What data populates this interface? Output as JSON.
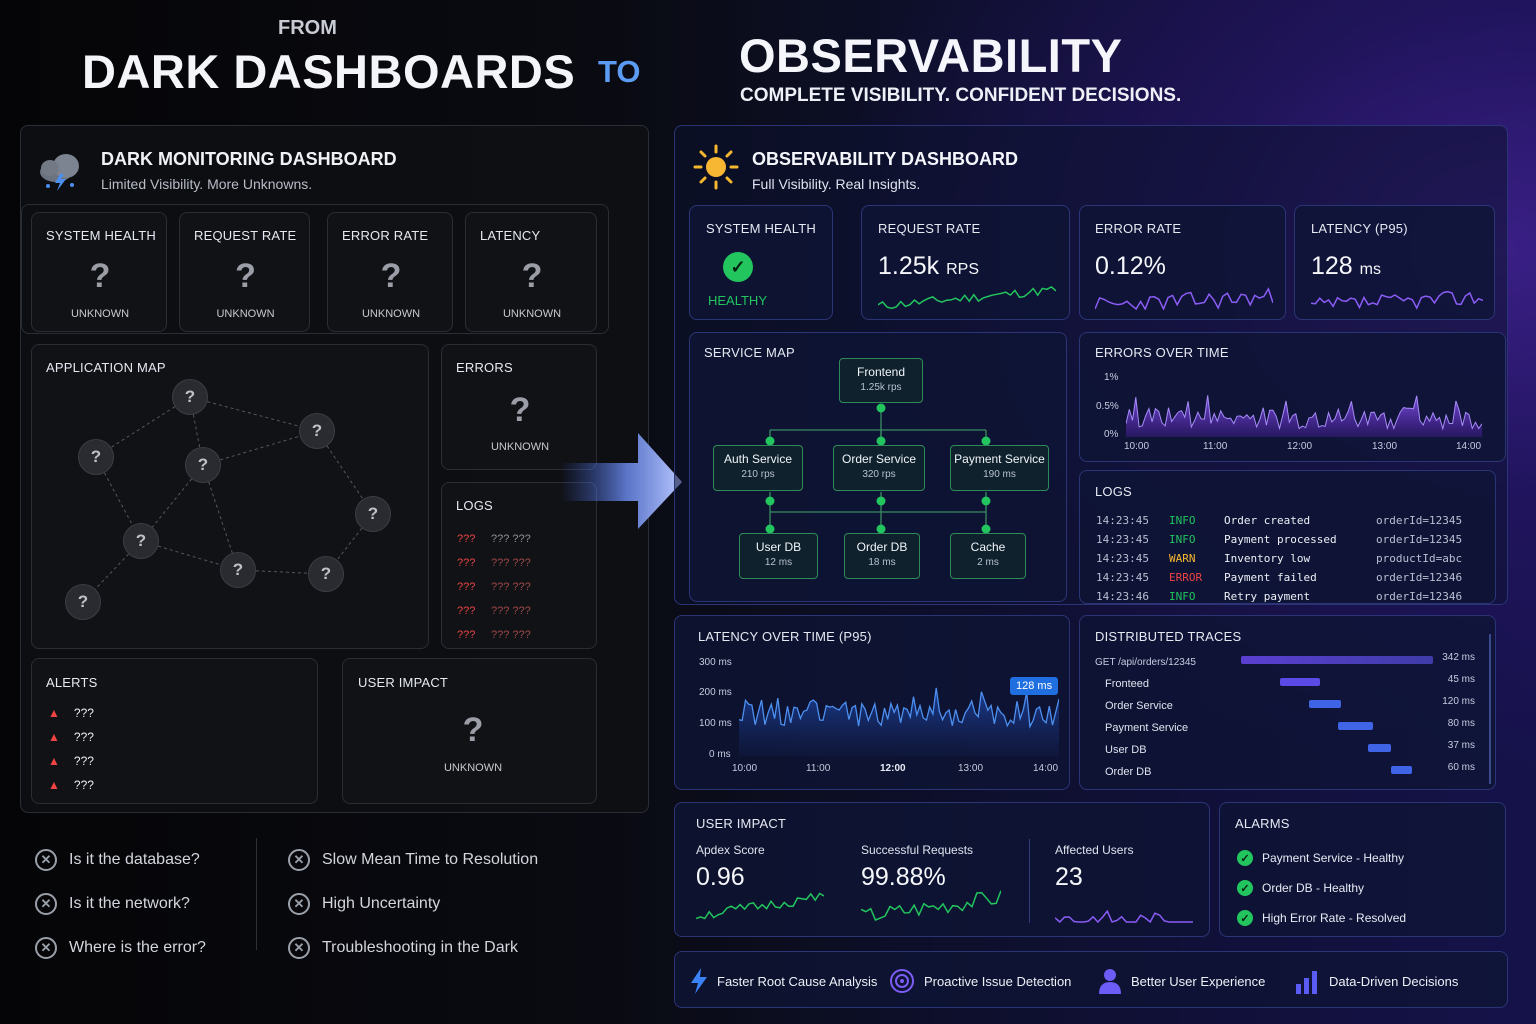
{
  "header": {
    "from": "FROM",
    "left_title": "DARK DASHBOARDS",
    "to": "TO",
    "right_title": "OBSERVABILITY",
    "right_subtitle": "COMPLETE VISIBILITY. CONFIDENT DECISIONS."
  },
  "dark": {
    "title": "DARK MONITORING DASHBOARD",
    "subtitle": "Limited Visibility. More Unknowns.",
    "icon": "storm-cloud-icon",
    "kpis": [
      {
        "label": "SYSTEM HEALTH",
        "value": "?",
        "status": "UNKNOWN"
      },
      {
        "label": "REQUEST RATE",
        "value": "?",
        "status": "UNKNOWN"
      },
      {
        "label": "ERROR RATE",
        "value": "?",
        "status": "UNKNOWN"
      },
      {
        "label": "LATENCY",
        "value": "?",
        "status": "UNKNOWN"
      }
    ],
    "app_map": {
      "label": "APPLICATION MAP",
      "node": "?"
    },
    "errors": {
      "label": "ERRORS",
      "value": "?",
      "status": "UNKNOWN"
    },
    "logs": {
      "label": "LOGS",
      "rows": [
        [
          "???",
          "??? ???"
        ],
        [
          "???",
          "??? ???"
        ],
        [
          "???",
          "??? ???"
        ],
        [
          "???",
          "??? ???"
        ],
        [
          "???",
          "??? ???"
        ]
      ]
    },
    "alerts": {
      "label": "ALERTS",
      "items": [
        "???",
        "???",
        "???",
        "???"
      ]
    },
    "user_impact": {
      "label": "USER IMPACT",
      "value": "?",
      "status": "UNKNOWN"
    },
    "pains_left": [
      "Is it the database?",
      "Is it the network?",
      "Where is the error?"
    ],
    "pains_right": [
      "Slow Mean Time to Resolution",
      "High Uncertainty",
      "Troubleshooting in the Dark"
    ]
  },
  "obs": {
    "title": "OBSERVABILITY DASHBOARD",
    "subtitle": "Full Visibility. Real Insights.",
    "icon": "sun-icon",
    "health": {
      "label": "SYSTEM HEALTH",
      "status": "HEALTHY"
    },
    "request_rate": {
      "label": "REQUEST RATE",
      "value": "1.25k",
      "unit": "RPS"
    },
    "error_rate": {
      "label": "ERROR RATE",
      "value": "0.12%"
    },
    "latency": {
      "label": "LATENCY (P95)",
      "value": "128",
      "unit": "ms"
    },
    "service_map": {
      "label": "SERVICE MAP",
      "services": {
        "frontend": {
          "name": "Frontend",
          "stat": "1.25k rps"
        },
        "auth": {
          "name": "Auth Service",
          "stat": "210 rps"
        },
        "order": {
          "name": "Order Service",
          "stat": "320 rps"
        },
        "payment": {
          "name": "Payment Service",
          "stat": "190 ms"
        },
        "userdb": {
          "name": "User DB",
          "stat": "12 ms"
        },
        "orderdb": {
          "name": "Order DB",
          "stat": "18 ms"
        },
        "cache": {
          "name": "Cache",
          "stat": "2 ms"
        }
      }
    },
    "errors_chart": {
      "label": "ERRORS OVER TIME",
      "yticks": [
        "1%",
        "0.5%",
        "0%"
      ],
      "xticks": [
        "10:00",
        "11:00",
        "12:00",
        "13:00",
        "14:00"
      ]
    },
    "logs": {
      "label": "LOGS",
      "rows": [
        {
          "time": "14:23:45",
          "level": "INFO",
          "msg": "Order created",
          "ctx": "orderId=12345"
        },
        {
          "time": "14:23:45",
          "level": "INFO",
          "msg": "Payment processed",
          "ctx": "orderId=12345"
        },
        {
          "time": "14:23:45",
          "level": "WARN",
          "msg": "Inventory low",
          "ctx": "productId=abc"
        },
        {
          "time": "14:23:45",
          "level": "ERROR",
          "msg": "Payment failed",
          "ctx": "orderId=12346"
        },
        {
          "time": "14:23:46",
          "level": "INFO",
          "msg": "Retry payment",
          "ctx": "orderId=12346"
        }
      ]
    },
    "latency_chart": {
      "label": "LATENCY OVER TIME (P95)",
      "yticks": [
        "300 ms",
        "200 ms",
        "100 ms",
        "0 ms"
      ],
      "xticks": [
        "10:00",
        "11:00",
        "12:00",
        "13:00",
        "14:00"
      ],
      "badge": "128 ms"
    },
    "traces": {
      "label": "DISTRIBUTED TRACES",
      "rows": [
        {
          "name": "GET /api/orders/12345",
          "dur": "342 ms"
        },
        {
          "name": "Fronteed",
          "dur": "45 ms"
        },
        {
          "name": "Order Service",
          "dur": "120 ms"
        },
        {
          "name": "Payment Service",
          "dur": "80 ms"
        },
        {
          "name": "User DB",
          "dur": "37 ms"
        },
        {
          "name": "Order DB",
          "dur": "60 ms"
        }
      ]
    },
    "user_impact": {
      "label": "USER IMPACT",
      "metrics": [
        {
          "label": "Apdex Score",
          "value": "0.96"
        },
        {
          "label": "Successful Requests",
          "value": "99.88%"
        },
        {
          "label": "Affected Users",
          "value": "23"
        }
      ]
    },
    "alarms": {
      "label": "ALARMS",
      "items": [
        "Payment Service - Healthy",
        "Order DB - Healthy",
        "High Error Rate - Resolved"
      ]
    },
    "benefits": [
      "Faster Root Cause Analysis",
      "Proactive Issue Detection",
      "Better User Experience",
      "Data-Driven Decisions"
    ]
  },
  "colors": {
    "healthy": "#22c55e",
    "accent_blue": "#4d8ff0",
    "accent_purple": "#8b5cf6",
    "warn": "#ffb020",
    "error": "#ef4444"
  }
}
